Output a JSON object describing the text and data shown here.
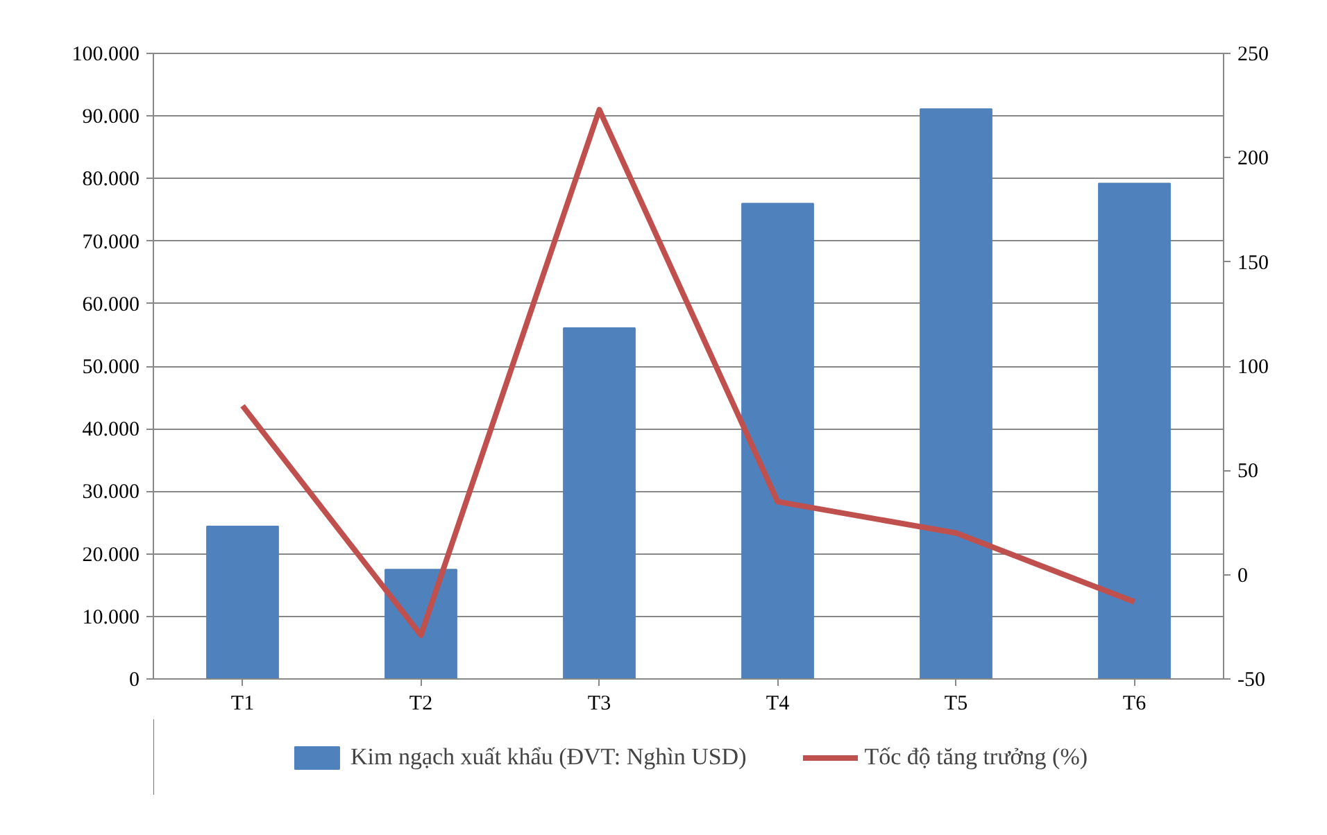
{
  "chart_data": {
    "type": "bar",
    "categories": [
      "T1",
      "T2",
      "T3",
      "T4",
      "T5",
      "T6"
    ],
    "series": [
      {
        "name": "Kim ngạch xuất khẩu (ĐVT: Nghìn USD)",
        "color": "#4f81bd",
        "values": [
          24400,
          17500,
          56100,
          76000,
          91100,
          79200
        ]
      },
      {
        "name": "Tốc độ tăng trưởng (%)",
        "type": "line",
        "axis": "y2",
        "color": "#c0504d",
        "values": [
          81,
          -29,
          223,
          35,
          20,
          -13
        ]
      }
    ],
    "ylim": [
      0,
      100000
    ],
    "yticks": [
      {
        "value": 0,
        "label": "0"
      },
      {
        "value": 10000,
        "label": "10.000"
      },
      {
        "value": 20000,
        "label": "20.000"
      },
      {
        "value": 30000,
        "label": "30.000"
      },
      {
        "value": 40000,
        "label": "40.000"
      },
      {
        "value": 50000,
        "label": "50.000"
      },
      {
        "value": 60000,
        "label": "60.000"
      },
      {
        "value": 70000,
        "label": "70.000"
      },
      {
        "value": 80000,
        "label": "80.000"
      },
      {
        "value": 90000,
        "label": "90.000"
      },
      {
        "value": 100000,
        "label": "100.000"
      }
    ],
    "y2lim": [
      -50,
      250
    ],
    "y2ticks": [
      -50,
      0,
      50,
      100,
      150,
      200,
      250
    ],
    "grid": "y",
    "legend": "bottom",
    "marker": "none",
    "line_style": "solid"
  }
}
